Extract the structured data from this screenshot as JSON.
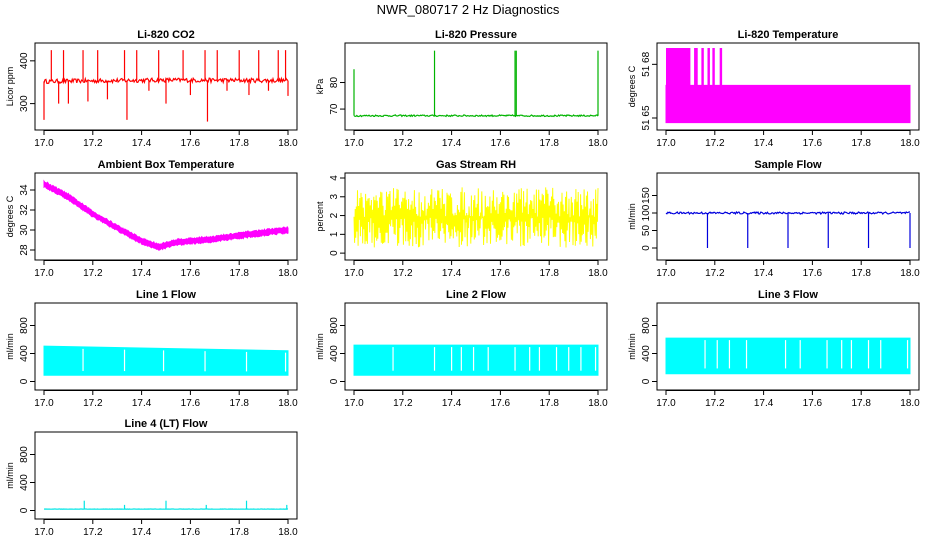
{
  "page_title": "NWR_080717  2 Hz Diagnostics",
  "chart_data": [
    {
      "type": "line",
      "title": "Li-820 CO2",
      "ylabel": "Licor ppm",
      "xlim": [
        17.0,
        18.0
      ],
      "ylim": [
        250,
        430
      ],
      "x_ticks": [
        "17.0",
        "17.2",
        "17.4",
        "17.6",
        "17.8",
        "18.0"
      ],
      "y_ticks": [
        {
          "v": 300,
          "label": "300"
        },
        {
          "v": 400,
          "label": "400"
        }
      ],
      "color": "#ff0000",
      "series": [
        {
          "name": "CO2",
          "pattern": "baseline_spikes",
          "baseline": [
            [
              17.0,
              352
            ],
            [
              17.5,
              355
            ],
            [
              18.0,
              354
            ]
          ],
          "noise": 5,
          "spikes": [
            [
              17.0,
              262
            ],
            [
              17.03,
              425
            ],
            [
              17.06,
              300
            ],
            [
              17.08,
              425
            ],
            [
              17.1,
              300
            ],
            [
              17.16,
              425
            ],
            [
              17.18,
              305
            ],
            [
              17.22,
              425
            ],
            [
              17.26,
              310
            ],
            [
              17.33,
              425
            ],
            [
              17.34,
              262
            ],
            [
              17.38,
              425
            ],
            [
              17.43,
              330
            ],
            [
              17.47,
              425
            ],
            [
              17.5,
              300
            ],
            [
              17.57,
              425
            ],
            [
              17.6,
              320
            ],
            [
              17.66,
              425
            ],
            [
              17.67,
              258
            ],
            [
              17.71,
              425
            ],
            [
              17.75,
              330
            ],
            [
              17.8,
              425
            ],
            [
              17.84,
              320
            ],
            [
              17.88,
              425
            ],
            [
              17.92,
              330
            ],
            [
              17.96,
              425
            ],
            [
              17.99,
              425
            ],
            [
              18.0,
              318
            ]
          ]
        }
      ]
    },
    {
      "type": "line",
      "title": "Li-820 Pressure",
      "ylabel": "kPa",
      "xlim": [
        17.0,
        18.0
      ],
      "ylim": [
        64,
        93
      ],
      "x_ticks": [
        "17.0",
        "17.2",
        "17.4",
        "17.6",
        "17.8",
        "18.0"
      ],
      "y_ticks": [
        {
          "v": 70,
          "label": "70"
        },
        {
          "v": 80,
          "label": "80"
        }
      ],
      "color": "#00b400",
      "series": [
        {
          "name": "Pressure",
          "pattern": "baseline_spikes",
          "baseline": [
            [
              17.0,
              67.5
            ],
            [
              18.0,
              67.5
            ]
          ],
          "noise": 0.3,
          "spikes": [
            [
              17.0,
              85
            ],
            [
              17.33,
              92
            ],
            [
              17.66,
              92
            ],
            [
              17.665,
              92
            ],
            [
              18.0,
              92
            ]
          ]
        }
      ]
    },
    {
      "type": "area",
      "title": "Li-820 Temperature",
      "ylabel": "degrees C",
      "xlim": [
        17.0,
        18.0
      ],
      "ylim": [
        51.649,
        51.682
      ],
      "x_ticks": [
        "17.0",
        "17.2",
        "17.4",
        "17.6",
        "17.8",
        "18.0"
      ],
      "y_ticks": [
        {
          "v": 51.652,
          "label": "51 65"
        },
        {
          "v": 51.675,
          "label": "51 68"
        }
      ],
      "color": "#ff00ff",
      "series": [
        {
          "name": "Temperature",
          "pattern": "band",
          "low": [
            [
              17.0,
              51.65
            ],
            [
              18.0,
              51.65
            ]
          ],
          "high": [
            [
              17.0,
              51.666
            ],
            [
              18.0,
              51.666
            ]
          ],
          "spikes_high": 51.682,
          "spikes": [
            [
              17.0,
              17.1
            ],
            [
              17.115,
              17.13
            ],
            [
              17.145,
              17.155
            ],
            [
              17.17,
              17.18
            ],
            [
              17.19,
              17.2
            ],
            [
              17.22,
              17.23
            ]
          ]
        }
      ]
    },
    {
      "type": "line",
      "title": "Ambient Box Temperature",
      "ylabel": "degrees C",
      "xlim": [
        17.0,
        18.0
      ],
      "ylim": [
        27.5,
        35.2
      ],
      "x_ticks": [
        "17.0",
        "17.2",
        "17.4",
        "17.6",
        "17.8",
        "18.0"
      ],
      "y_ticks": [
        {
          "v": 28,
          "label": "28"
        },
        {
          "v": 30,
          "label": "30"
        },
        {
          "v": 32,
          "label": "32"
        },
        {
          "v": 34,
          "label": "34"
        }
      ],
      "color": "#ff00ff",
      "series": [
        {
          "name": "Ambient",
          "pattern": "noisy",
          "path": [
            [
              17.0,
              34.6
            ],
            [
              17.1,
              33.3
            ],
            [
              17.2,
              31.6
            ],
            [
              17.3,
              30.2
            ],
            [
              17.4,
              28.9
            ],
            [
              17.47,
              28.3
            ],
            [
              17.55,
              28.8
            ],
            [
              17.7,
              29.1
            ],
            [
              17.85,
              29.6
            ],
            [
              18.0,
              30.0
            ]
          ],
          "noise": 0.35
        }
      ]
    },
    {
      "type": "area",
      "title": "Gas Stream RH",
      "ylabel": "percent",
      "xlim": [
        17.0,
        18.0
      ],
      "ylim": [
        -0.1,
        4.0
      ],
      "x_ticks": [
        "17.0",
        "17.2",
        "17.4",
        "17.6",
        "17.8",
        "18.0"
      ],
      "y_ticks": [
        {
          "v": 0,
          "label": "0"
        },
        {
          "v": 1,
          "label": "1"
        },
        {
          "v": 2,
          "label": "2"
        },
        {
          "v": 3,
          "label": "3"
        },
        {
          "v": 4,
          "label": "4"
        }
      ],
      "color": "#ffff00",
      "series": [
        {
          "name": "RH",
          "pattern": "jagged",
          "low": 0.3,
          "high": 3.5,
          "center": 1.9
        }
      ]
    },
    {
      "type": "line",
      "title": "Sample Flow",
      "ylabel": "ml/min",
      "xlim": [
        17.0,
        18.0
      ],
      "ylim": [
        -20,
        200
      ],
      "x_ticks": [
        "17.0",
        "17.2",
        "17.4",
        "17.6",
        "17.8",
        "18.0"
      ],
      "y_ticks": [
        {
          "v": 0,
          "label": "0"
        },
        {
          "v": 50,
          "label": "50"
        },
        {
          "v": 100,
          "label": "100"
        },
        {
          "v": 150,
          "label": "150"
        }
      ],
      "color": "#0000dd",
      "series": [
        {
          "name": "Sample",
          "pattern": "baseline_spikes",
          "baseline": [
            [
              17.0,
              100
            ],
            [
              18.0,
              100
            ]
          ],
          "noise": 3,
          "spikes": [
            [
              17.17,
              0
            ],
            [
              17.335,
              0
            ],
            [
              17.5,
              0
            ],
            [
              17.665,
              0
            ],
            [
              17.83,
              0
            ],
            [
              18.0,
              0
            ]
          ]
        }
      ]
    },
    {
      "type": "area",
      "title": "Line 1 Flow",
      "ylabel": "ml/min",
      "xlim": [
        17.0,
        18.0
      ],
      "ylim": [
        -50,
        1050
      ],
      "x_ticks": [
        "17.0",
        "17.2",
        "17.4",
        "17.6",
        "17.8",
        "18.0"
      ],
      "y_ticks": [
        {
          "v": 0,
          "label": "0"
        },
        {
          "v": 400,
          "label": "400"
        },
        {
          "v": 800,
          "label": "800"
        }
      ],
      "color": "#00ffff",
      "series": [
        {
          "name": "Line 1",
          "pattern": "band",
          "low": [
            [
              17.0,
              90
            ],
            [
              18.0,
              90
            ]
          ],
          "high": [
            [
              17.0,
              505
            ],
            [
              18.0,
              440
            ]
          ],
          "gaps": [
            17.16,
            17.33,
            17.49,
            17.66,
            17.83,
            17.99
          ]
        }
      ]
    },
    {
      "type": "area",
      "title": "Line 2 Flow",
      "ylabel": "ml/min",
      "xlim": [
        17.0,
        18.0
      ],
      "ylim": [
        -50,
        1050
      ],
      "x_ticks": [
        "17.0",
        "17.2",
        "17.4",
        "17.6",
        "17.8",
        "18.0"
      ],
      "y_ticks": [
        {
          "v": 0,
          "label": "0"
        },
        {
          "v": 400,
          "label": "400"
        },
        {
          "v": 800,
          "label": "800"
        }
      ],
      "color": "#00ffff",
      "series": [
        {
          "name": "Line 2",
          "pattern": "band",
          "low": [
            [
              17.0,
              90
            ],
            [
              18.0,
              90
            ]
          ],
          "high": [
            [
              17.0,
              520
            ],
            [
              18.0,
              520
            ]
          ],
          "gaps": [
            17.16,
            17.33,
            17.4,
            17.44,
            17.49,
            17.55,
            17.66,
            17.72,
            17.76,
            17.83,
            17.88,
            17.93,
            17.99
          ]
        }
      ]
    },
    {
      "type": "area",
      "title": "Line 3 Flow",
      "ylabel": "ml/min",
      "xlim": [
        17.0,
        18.0
      ],
      "ylim": [
        -50,
        1050
      ],
      "x_ticks": [
        "17.0",
        "17.2",
        "17.4",
        "17.6",
        "17.8",
        "18.0"
      ],
      "y_ticks": [
        {
          "v": 0,
          "label": "0"
        },
        {
          "v": 400,
          "label": "400"
        },
        {
          "v": 800,
          "label": "800"
        }
      ],
      "color": "#00ffff",
      "series": [
        {
          "name": "Line 3",
          "pattern": "band",
          "low": [
            [
              17.0,
              110
            ],
            [
              18.0,
              110
            ]
          ],
          "high": [
            [
              17.0,
              620
            ],
            [
              18.0,
              620
            ]
          ],
          "gaps": [
            17.16,
            17.21,
            17.26,
            17.33,
            17.49,
            17.55,
            17.66,
            17.72,
            17.76,
            17.83,
            17.88,
            17.99
          ]
        }
      ]
    },
    {
      "type": "line",
      "title": "Line 4 (LT) Flow",
      "ylabel": "ml/min",
      "xlim": [
        17.0,
        18.0
      ],
      "ylim": [
        -50,
        1050
      ],
      "x_ticks": [
        "17.0",
        "17.2",
        "17.4",
        "17.6",
        "17.8",
        "18.0"
      ],
      "y_ticks": [
        {
          "v": 0,
          "label": "0"
        },
        {
          "v": 400,
          "label": "400"
        },
        {
          "v": 800,
          "label": "800"
        }
      ],
      "color": "#00e5e5",
      "series": [
        {
          "name": "Line 4",
          "pattern": "baseline_spikes",
          "baseline": [
            [
              17.0,
              20
            ],
            [
              18.0,
              20
            ]
          ],
          "noise": 2,
          "spikes": [
            [
              17.165,
              140
            ],
            [
              17.33,
              80
            ],
            [
              17.5,
              140
            ],
            [
              17.665,
              80
            ],
            [
              17.83,
              140
            ],
            [
              17.995,
              80
            ]
          ]
        }
      ]
    }
  ]
}
